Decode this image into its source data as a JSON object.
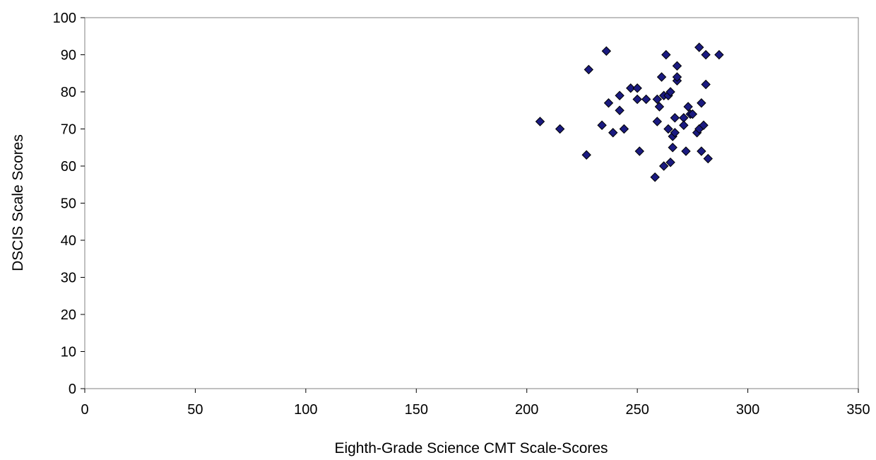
{
  "chart_data": {
    "type": "scatter",
    "title": "",
    "xlabel": "Eighth-Grade Science CMT Scale-Scores",
    "ylabel": "DSCIS Scale Scores",
    "xlim": [
      0,
      350
    ],
    "ylim": [
      0,
      100
    ],
    "xticks": [
      0,
      50,
      100,
      150,
      200,
      250,
      300,
      350
    ],
    "yticks": [
      0,
      10,
      20,
      30,
      40,
      50,
      60,
      70,
      80,
      90,
      100
    ],
    "grid": false,
    "legend": "none",
    "marker": "diamond",
    "marker_color": "#1a1a80",
    "series": [
      {
        "points": [
          [
            206,
            72
          ],
          [
            215,
            70
          ],
          [
            227,
            63
          ],
          [
            228,
            86
          ],
          [
            234,
            71
          ],
          [
            236,
            91
          ],
          [
            237,
            77
          ],
          [
            239,
            69
          ],
          [
            242,
            79
          ],
          [
            242,
            75
          ],
          [
            244,
            70
          ],
          [
            247,
            81
          ],
          [
            250,
            81
          ],
          [
            250,
            78
          ],
          [
            251,
            64
          ],
          [
            254,
            78
          ],
          [
            258,
            57
          ],
          [
            259,
            72
          ],
          [
            259,
            78
          ],
          [
            260,
            76
          ],
          [
            261,
            84
          ],
          [
            262,
            60
          ],
          [
            262,
            79
          ],
          [
            263,
            90
          ],
          [
            264,
            79
          ],
          [
            264,
            70
          ],
          [
            265,
            80
          ],
          [
            265,
            61
          ],
          [
            266,
            65
          ],
          [
            266,
            68
          ],
          [
            267,
            73
          ],
          [
            267,
            69
          ],
          [
            268,
            87
          ],
          [
            268,
            83
          ],
          [
            268,
            84
          ],
          [
            271,
            73
          ],
          [
            271,
            71
          ],
          [
            272,
            64
          ],
          [
            273,
            76
          ],
          [
            274,
            74
          ],
          [
            275,
            74
          ],
          [
            277,
            69
          ],
          [
            278,
            70
          ],
          [
            278,
            92
          ],
          [
            279,
            64
          ],
          [
            279,
            77
          ],
          [
            280,
            71
          ],
          [
            281,
            90
          ],
          [
            281,
            82
          ],
          [
            282,
            62
          ],
          [
            287,
            90
          ]
        ]
      }
    ]
  }
}
